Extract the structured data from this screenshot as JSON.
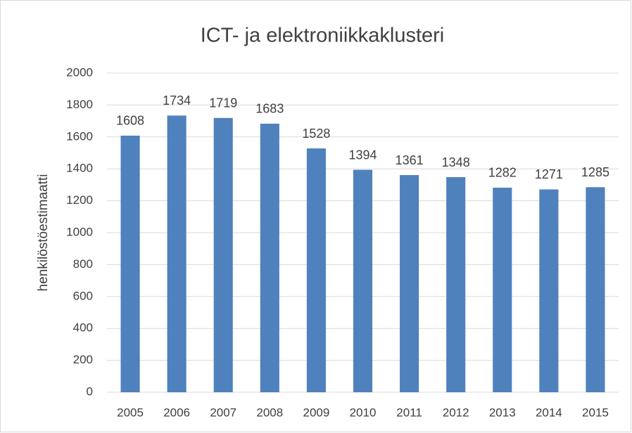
{
  "chart_data": {
    "type": "bar",
    "title": "ICT- ja elektroniikkaklusteri",
    "y_label": "henkilöstöestimaatti",
    "categories": [
      "2005",
      "2006",
      "2007",
      "2008",
      "2009",
      "2010",
      "2011",
      "2012",
      "2013",
      "2014",
      "2015"
    ],
    "values": [
      1608,
      1734,
      1719,
      1683,
      1528,
      1394,
      1361,
      1348,
      1282,
      1271,
      1285
    ],
    "color": "#4f81bd",
    "ylim": [
      0,
      2000
    ],
    "yticks": [
      0,
      200,
      400,
      600,
      800,
      1000,
      1200,
      1400,
      1600,
      1800,
      2000
    ],
    "grid": true,
    "data_labels": true
  }
}
